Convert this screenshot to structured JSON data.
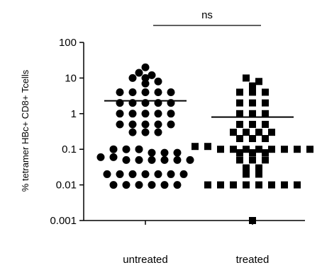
{
  "chart_data": {
    "type": "scatter",
    "ylabel": "% tetramer HBc+ CD8+ Tcells",
    "yscale": "log",
    "ylim": [
      0.001,
      100
    ],
    "yticks": [
      {
        "value": 0.001,
        "label": "0.001"
      },
      {
        "value": 0.01,
        "label": "0.01"
      },
      {
        "value": 0.1,
        "label": "0.1"
      },
      {
        "value": 1,
        "label": "1"
      },
      {
        "value": 10,
        "label": "10"
      },
      {
        "value": 100,
        "label": "100"
      }
    ],
    "categories": [
      "untreated",
      "treated"
    ],
    "significance": {
      "label": "ns",
      "between": [
        "untreated",
        "treated"
      ]
    },
    "series": [
      {
        "category": "untreated",
        "marker": "circle",
        "color": "#000000",
        "mean": 2.3,
        "values": [
          20,
          14,
          10,
          10,
          8,
          7,
          12,
          4,
          4,
          4,
          4,
          4,
          2,
          2,
          2,
          2,
          2,
          1,
          1,
          1,
          1,
          1,
          0.5,
          0.5,
          0.5,
          0.5,
          0.5,
          0.3,
          0.3,
          0.3,
          0.1,
          0.1,
          0.1,
          0.08,
          0.08,
          0.08,
          0.06,
          0.06,
          0.05,
          0.05,
          0.05,
          0.05,
          0.05,
          0.05,
          0.02,
          0.02,
          0.02,
          0.02,
          0.02,
          0.02,
          0.02,
          0.01,
          0.01,
          0.01,
          0.01,
          0.01,
          0.01
        ]
      },
      {
        "category": "treated",
        "marker": "square",
        "color": "#000000",
        "mean": 0.8,
        "values": [
          10,
          8,
          6,
          4,
          4,
          4,
          2,
          2,
          2,
          1,
          1,
          1,
          0.5,
          0.5,
          0.5,
          0.3,
          0.3,
          0.3,
          0.3,
          0.2,
          0.2,
          0.2,
          0.12,
          0.12,
          0.1,
          0.1,
          0.1,
          0.1,
          0.1,
          0.1,
          0.1,
          0.1,
          0.08,
          0.08,
          0.08,
          0.05,
          0.05,
          0.05,
          0.03,
          0.03,
          0.02,
          0.02,
          0.01,
          0.01,
          0.01,
          0.01,
          0.01,
          0.01,
          0.01,
          0.01,
          0.001
        ]
      }
    ]
  }
}
